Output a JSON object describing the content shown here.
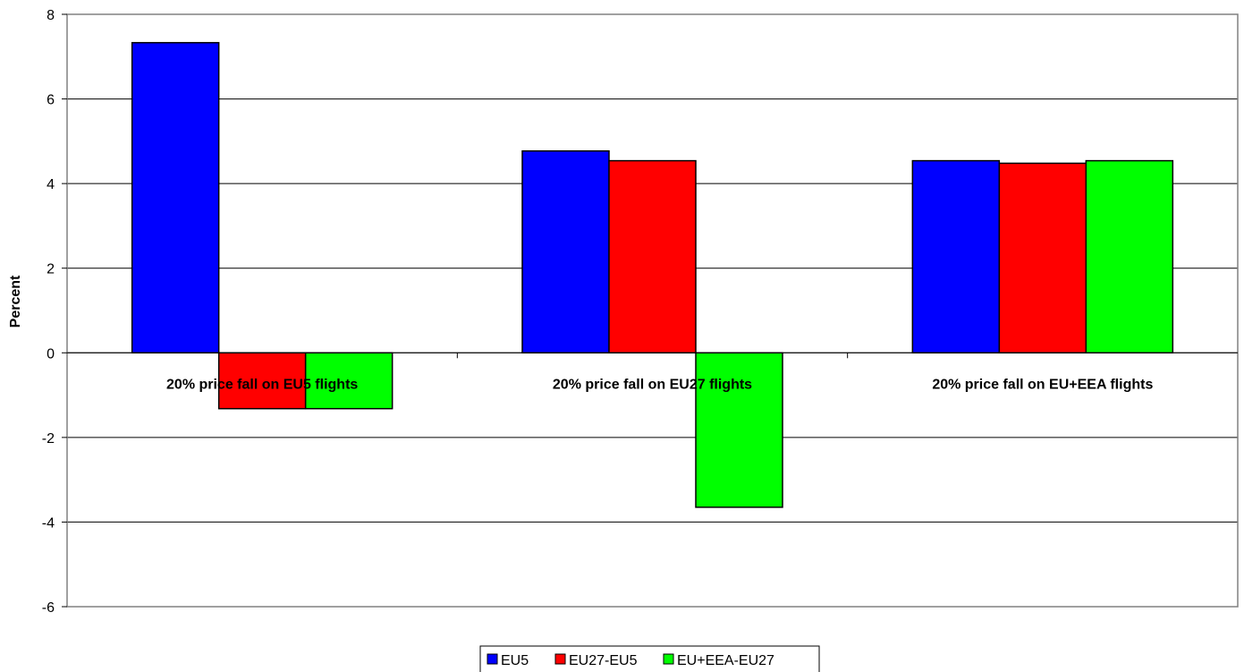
{
  "chart_data": {
    "type": "bar",
    "title": "",
    "xlabel": "",
    "ylabel": "Percent",
    "ylim": [
      -6,
      8
    ],
    "yticks": [
      8,
      6,
      4,
      2,
      0,
      -2,
      -4,
      -6
    ],
    "grid": true,
    "legend_position": "bottom",
    "categories": [
      "20% price fall on EU5 flights",
      "20% price fall on EU27 flights",
      "20% price fall on EU+EEA flights"
    ],
    "series": [
      {
        "name": "EU5",
        "color": "#0000ff",
        "values": [
          7.33,
          4.77,
          4.54
        ]
      },
      {
        "name": "EU27-EU5",
        "color": "#ff0000",
        "values": [
          -1.32,
          4.54,
          4.48
        ]
      },
      {
        "name": "EU+EEA-EU27",
        "color": "#00ff00",
        "values": [
          -1.32,
          -3.65,
          4.54
        ]
      }
    ]
  }
}
